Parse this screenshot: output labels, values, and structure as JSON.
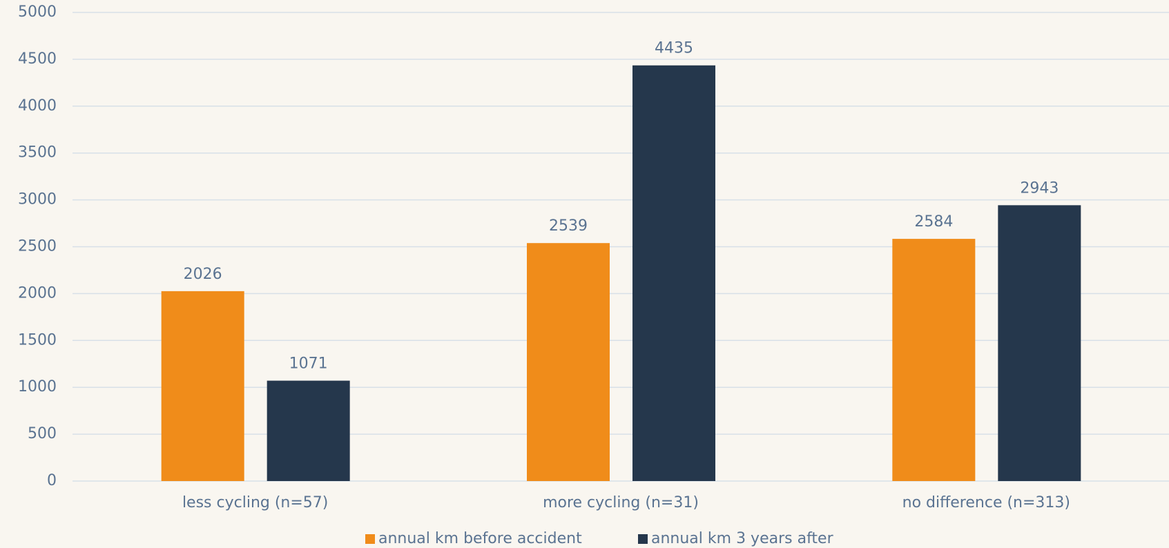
{
  "chart_data": {
    "type": "bar",
    "categories": [
      "less cycling (n=57)",
      "more cycling (n=31)",
      "no difference (n=313)"
    ],
    "series": [
      {
        "name": "annual km before accident",
        "color": "#f08c1a",
        "values": [
          2026,
          2539,
          2584
        ]
      },
      {
        "name": "annual km 3 years after",
        "color": "#25374c",
        "values": [
          1071,
          4435,
          2943
        ]
      }
    ],
    "ylim": [
      0,
      5000
    ],
    "yticks": [
      0,
      500,
      1000,
      1500,
      2000,
      2500,
      3000,
      3500,
      4000,
      4500,
      5000
    ],
    "grid": true,
    "legend": "bottom"
  }
}
